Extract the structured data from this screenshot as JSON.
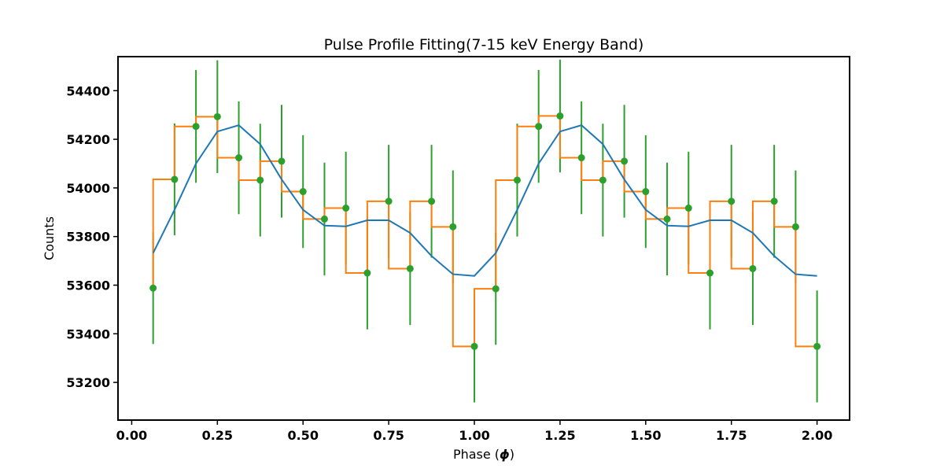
{
  "chart_data": {
    "type": "line",
    "title": "Pulse Profile Fitting(7-15 keV Energy Band)",
    "xlabel_text": "Phase (",
    "xlabel_symbol": "ϕ",
    "xlabel_close": ")",
    "ylabel": "Counts",
    "xlim": [
      -0.04,
      2.095
    ],
    "ylim": [
      53045,
      54540
    ],
    "xticks": [
      0.0,
      0.25,
      0.5,
      0.75,
      1.0,
      1.25,
      1.5,
      1.75,
      2.0
    ],
    "xtick_labels": [
      "0.00",
      "0.25",
      "0.50",
      "0.75",
      "1.00",
      "1.25",
      "1.50",
      "1.75",
      "2.00"
    ],
    "yticks": [
      53200,
      53400,
      53600,
      53800,
      54000,
      54200,
      54400
    ],
    "ytick_labels": [
      "53200",
      "53400",
      "53600",
      "53800",
      "54000",
      "54200",
      "54400"
    ],
    "grid": false,
    "colors": {
      "fit": "#1f77b4",
      "step": "#ff7f0e",
      "data": "#2ca02c"
    },
    "x": [
      0.0625,
      0.125,
      0.1875,
      0.25,
      0.3125,
      0.375,
      0.4375,
      0.5,
      0.5625,
      0.625,
      0.6875,
      0.75,
      0.8125,
      0.875,
      0.9375,
      1.0,
      1.0625,
      1.125,
      1.1875,
      1.25,
      1.3125,
      1.375,
      1.4375,
      1.5,
      1.5625,
      1.625,
      1.6875,
      1.75,
      1.8125,
      1.875,
      1.9375,
      2.0
    ],
    "series": [
      {
        "type": "errorbar",
        "values": [
          53588,
          54035,
          54253,
          54293,
          54124,
          54032,
          54110,
          53985,
          53872,
          53917,
          53650,
          53945,
          53668,
          53945,
          53840,
          53348,
          53585,
          54032,
          54253,
          54296,
          54124,
          54032,
          54110,
          53985,
          53872,
          53917,
          53650,
          53945,
          53668,
          53945,
          53840,
          53348
        ],
        "error": [
          230,
          230,
          232,
          232,
          232,
          232,
          232,
          232,
          232,
          232,
          232,
          232,
          232,
          232,
          232,
          230,
          230,
          232,
          232,
          232,
          232,
          232,
          232,
          232,
          232,
          232,
          232,
          232,
          232,
          232,
          232,
          230
        ]
      },
      {
        "type": "step",
        "values": [
          53588,
          54035,
          54253,
          54293,
          54124,
          54032,
          54110,
          53985,
          53872,
          53917,
          53650,
          53945,
          53668,
          53945,
          53840,
          53348,
          53585,
          54032,
          54253,
          54296,
          54124,
          54032,
          54110,
          53985,
          53872,
          53917,
          53650,
          53945,
          53668,
          53945,
          53840,
          53348
        ]
      },
      {
        "type": "line",
        "values": [
          53732,
          53910,
          54100,
          54232,
          54258,
          54180,
          54035,
          53910,
          53845,
          53842,
          53867,
          53867,
          53815,
          53720,
          53645,
          53638,
          53732,
          53910,
          54100,
          54232,
          54258,
          54180,
          54035,
          53910,
          53845,
          53842,
          53867,
          53867,
          53815,
          53720,
          53645,
          53638
        ]
      }
    ]
  }
}
